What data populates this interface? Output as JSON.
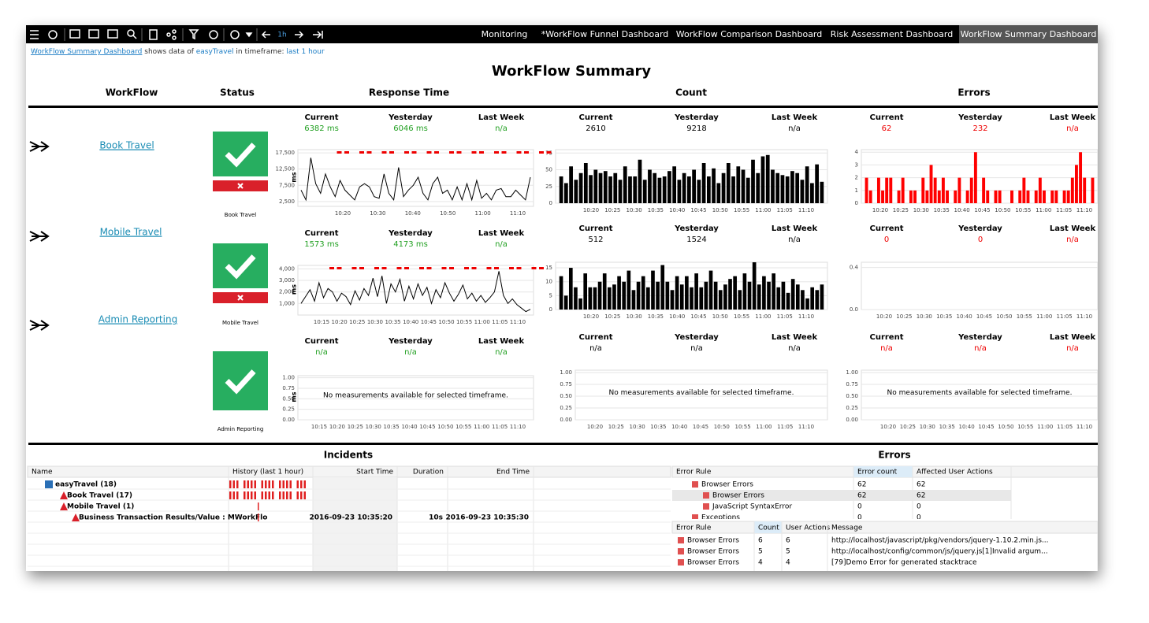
{
  "toolbar": {
    "time_label": "1h",
    "tabs": [
      "Monitoring",
      "*WorkFlow Funnel Dashboard",
      "WorkFlow Comparison Dashboard",
      "Risk Assessment Dashboard",
      "WorkFlow Summary Dashboard"
    ],
    "active_tab": 4
  },
  "breadcrumb": {
    "dashboard": "WorkFlow Summary Dashboard",
    "text1": " shows data of ",
    "system": "easyTravel",
    "text2": " in timeframe: ",
    "timeframe": "last 1 hour"
  },
  "title": "WorkFlow Summary",
  "columns": [
    "WorkFlow",
    "Status",
    "Response Time",
    "Count",
    "Errors"
  ],
  "stat_labels": [
    "Current",
    "Yesterday",
    "Last Week"
  ],
  "workflows": [
    {
      "name": "Book Travel",
      "status_label": "Book Travel",
      "status_error": true,
      "response": {
        "stats": [
          "6382 ms",
          "6046 ms",
          "n/a"
        ],
        "chart": {
          "type": "line",
          "axis_label": "ms",
          "ylim": [
            1000,
            18500
          ],
          "yticks": [
            {
              "value": 2500,
              "label": "2,500"
            },
            {
              "value": 7500,
              "label": "7,500"
            },
            {
              "value": 12500,
              "label": "12,500"
            },
            {
              "value": 17500,
              "label": "17,500"
            }
          ],
          "xticks": [
            "10:20",
            "10:30",
            "10:40",
            "10:50",
            "11:00",
            "11:10"
          ],
          "values": [
            6000,
            3000,
            16000,
            8000,
            5000,
            11000,
            7000,
            4000,
            9000,
            6000,
            4500,
            3000,
            7000,
            8000,
            7000,
            4000,
            3500,
            11000,
            5000,
            3000,
            13000,
            4000,
            6000,
            7500,
            10000,
            5000,
            3000,
            8000,
            10000,
            5000,
            6000,
            3000,
            7000,
            3000,
            8000,
            3000,
            9000,
            3500,
            5000,
            3000,
            6000,
            6500,
            4000,
            4000,
            6000,
            4500,
            3000,
            10000
          ]
        }
      },
      "count": {
        "stats": [
          2610,
          9218,
          "n/a"
        ],
        "chart": {
          "type": "bar",
          "color": "#000000",
          "ylim": [
            0,
            80
          ],
          "yticks": [
            0,
            25,
            50,
            75
          ],
          "xticks": [
            "10:20",
            "10:25",
            "10:30",
            "10:35",
            "10:40",
            "10:45",
            "10:50",
            "10:55",
            "11:00",
            "11:05",
            "11:10"
          ],
          "values": [
            40,
            30,
            55,
            35,
            45,
            60,
            42,
            50,
            45,
            48,
            40,
            45,
            35,
            55,
            40,
            40,
            65,
            35,
            50,
            45,
            38,
            40,
            48,
            55,
            35,
            45,
            40,
            50,
            35,
            60,
            40,
            52,
            30,
            45,
            60,
            40,
            55,
            50,
            38,
            65,
            45,
            70,
            72,
            50,
            45,
            42,
            40,
            48,
            45,
            35,
            55,
            30,
            58,
            32
          ]
        }
      },
      "errors": {
        "stats": [
          62,
          232,
          "n/a"
        ],
        "chart": {
          "type": "bar",
          "color": "#ff0000",
          "ylim": [
            0,
            4.2
          ],
          "yticks": [
            0,
            1,
            2,
            3,
            4
          ],
          "xticks": [
            "10:20",
            "10:25",
            "10:30",
            "10:35",
            "10:40",
            "10:45",
            "10:50",
            "10:55",
            "11:00",
            "11:05",
            "11:10"
          ],
          "values": [
            2,
            1,
            0,
            2,
            1,
            2,
            2,
            0,
            1,
            2,
            0,
            1,
            1,
            0,
            2,
            1,
            3,
            2,
            1,
            2,
            1,
            0,
            1,
            2,
            0,
            1,
            2,
            4,
            0,
            2,
            1,
            0,
            1,
            1,
            0,
            0,
            1,
            0,
            1,
            2,
            1,
            0,
            1,
            2,
            1,
            0,
            1,
            1,
            0,
            1,
            1,
            2,
            3,
            4,
            2,
            0,
            2
          ]
        }
      }
    },
    {
      "name": "Mobile Travel",
      "status_label": "Mobile Travel",
      "status_error": true,
      "response": {
        "stats": [
          "1573 ms",
          "4173 ms",
          "n/a"
        ],
        "chart": {
          "type": "line",
          "axis_label": "ms",
          "ylim": [
            0,
            4300
          ],
          "yticks": [
            {
              "value": 1000,
              "label": "1,000"
            },
            {
              "value": 2000,
              "label": "2,000"
            },
            {
              "value": 3000,
              "label": "3,000"
            },
            {
              "value": 4000,
              "label": "4,000"
            }
          ],
          "xticks": [
            "10:15",
            "10:20",
            "10:25",
            "10:30",
            "10:35",
            "10:40",
            "10:45",
            "10:50",
            "10:55",
            "11:00",
            "11:05",
            "11:10"
          ],
          "values": [
            1000,
            1600,
            2200,
            1200,
            2800,
            1500,
            2300,
            2000,
            1200,
            1900,
            1600,
            900,
            2100,
            1300,
            2300,
            1700,
            3200,
            1600,
            3400,
            1000,
            2700,
            2000,
            3100,
            1200,
            2500,
            1400,
            2700,
            1700,
            2400,
            1000,
            2200,
            1500,
            2800,
            1900,
            1200,
            1800,
            2600,
            1400,
            1900,
            1200,
            1700,
            1100,
            1500,
            2000,
            3800,
            1700,
            1000,
            1400,
            900,
            600,
            300,
            500
          ]
        }
      },
      "count": {
        "stats": [
          512,
          1524,
          "n/a"
        ],
        "chart": {
          "type": "bar",
          "color": "#000000",
          "ylim": [
            0,
            17
          ],
          "yticks": [
            0,
            5,
            10,
            15
          ],
          "xticks": [
            "10:20",
            "10:25",
            "10:30",
            "10:35",
            "10:40",
            "10:45",
            "10:50",
            "10:55",
            "11:00",
            "11:05",
            "11:10"
          ],
          "values": [
            12,
            5,
            15,
            8,
            4,
            13,
            8,
            8,
            10,
            13,
            8,
            9,
            12,
            10,
            14,
            7,
            10,
            12,
            8,
            14,
            10,
            16,
            10,
            7,
            12,
            9,
            12,
            8,
            13,
            8,
            10,
            14,
            10,
            7,
            9,
            11,
            12,
            7,
            13,
            10,
            17,
            9,
            12,
            10,
            13,
            8,
            10,
            6,
            11,
            9,
            7,
            4,
            8,
            7,
            9
          ]
        }
      },
      "errors": {
        "stats": [
          0,
          0,
          "n/a"
        ],
        "chart": {
          "type": "bar",
          "color": "#ff0000",
          "ylim": [
            0,
            0.45
          ],
          "yticks": [
            {
              "value": 0,
              "label": "0.0"
            },
            {
              "value": 0.4,
              "label": "0.4"
            }
          ],
          "xticks": [
            "10:20",
            "10:25",
            "10:30",
            "10:35",
            "10:40",
            "10:45",
            "10:50",
            "10:55",
            "11:00",
            "11:05",
            "11:10"
          ],
          "values": []
        }
      }
    },
    {
      "name": "Admin Reporting",
      "status_label": "Admin Reporting",
      "status_error": false,
      "response": {
        "stats": [
          "n/a",
          "n/a",
          "n/a"
        ],
        "chart": {
          "type": "line",
          "axis_label": "ms",
          "ylim": [
            0,
            1.05
          ],
          "yticks": [
            {
              "value": 0,
              "label": "0.00"
            },
            {
              "value": 0.25,
              "label": "0.25"
            },
            {
              "value": 0.5,
              "label": "0.50"
            },
            {
              "value": 0.75,
              "label": "0.75"
            },
            {
              "value": 1,
              "label": "1.00"
            }
          ],
          "xticks": [
            "10:15",
            "10:20",
            "10:25",
            "10:30",
            "10:35",
            "10:40",
            "10:45",
            "10:50",
            "10:55",
            "11:00",
            "11:05",
            "11:10"
          ],
          "message": "No measurements available for selected timeframe.",
          "values": []
        }
      },
      "count": {
        "stats": [
          "n/a",
          "n/a",
          "n/a"
        ],
        "chart": {
          "type": "bar",
          "color": "#000000",
          "ylim": [
            0,
            1.05
          ],
          "yticks": [
            {
              "value": 0,
              "label": "0.00"
            },
            {
              "value": 0.25,
              "label": "0.25"
            },
            {
              "value": 0.5,
              "label": "0.50"
            },
            {
              "value": 0.75,
              "label": "0.75"
            },
            {
              "value": 1,
              "label": "1.00"
            }
          ],
          "xticks": [
            "10:20",
            "10:25",
            "10:30",
            "10:35",
            "10:40",
            "10:45",
            "10:50",
            "10:55",
            "11:00",
            "11:05",
            "11:10"
          ],
          "message": "No measurements available for selected timeframe.",
          "values": []
        }
      },
      "errors": {
        "stats": [
          "n/a",
          "n/a",
          "n/a"
        ],
        "chart": {
          "type": "bar",
          "color": "#ff0000",
          "ylim": [
            0,
            1.05
          ],
          "yticks": [
            {
              "value": 0,
              "label": "0.00"
            },
            {
              "value": 0.25,
              "label": "0.25"
            },
            {
              "value": 0.5,
              "label": "0.50"
            },
            {
              "value": 0.75,
              "label": "0.75"
            },
            {
              "value": 1,
              "label": "1.00"
            }
          ],
          "xticks": [
            "10:20",
            "10:25",
            "10:30",
            "10:35",
            "10:40",
            "10:45",
            "10:50",
            "10:55",
            "11:00",
            "11:05",
            "11:10"
          ],
          "message": "No measurements available for selected timeframe.",
          "values": []
        }
      }
    }
  ],
  "incidents": {
    "title": "Incidents",
    "columns": [
      "Name",
      "History (last 1 hour)",
      "Start Time",
      "Duration",
      "End Time"
    ],
    "rows": [
      {
        "name": "easyTravel (18)"
      },
      {
        "name": "Book Travel (17)"
      },
      {
        "name": "Mobile Travel (1)"
      },
      {
        "name": "Business Transaction Results/Value : MWorkFlo",
        "start": "2016-09-23 10:35:20",
        "duration": "10s",
        "end": "2016-09-23 10:35:30"
      }
    ]
  },
  "errors_panel": {
    "title": "Errors",
    "rules_columns": [
      "Error Rule",
      "Error count",
      "Affected User Actions"
    ],
    "rules_rows": [
      [
        "Browser Errors",
        62,
        62
      ],
      [
        "Browser Errors",
        62,
        62
      ],
      [
        "JavaScript SyntaxError",
        0,
        0
      ],
      [
        "Exceptions",
        0,
        0
      ]
    ],
    "detail_columns": [
      "Error Rule",
      "Count",
      "User Actions",
      "Message"
    ],
    "detail_rows": [
      [
        "Browser Errors",
        6,
        6,
        "http://localhost/javascript/pkg/vendors/jquery-1.10.2.min.js..."
      ],
      [
        "Browser Errors",
        5,
        5,
        "http://localhost/config/common/js/jquery.js[1]Invalid argum..."
      ],
      [
        "Browser Errors",
        4,
        4,
        "[79]Demo Error for generated stacktrace"
      ]
    ]
  }
}
